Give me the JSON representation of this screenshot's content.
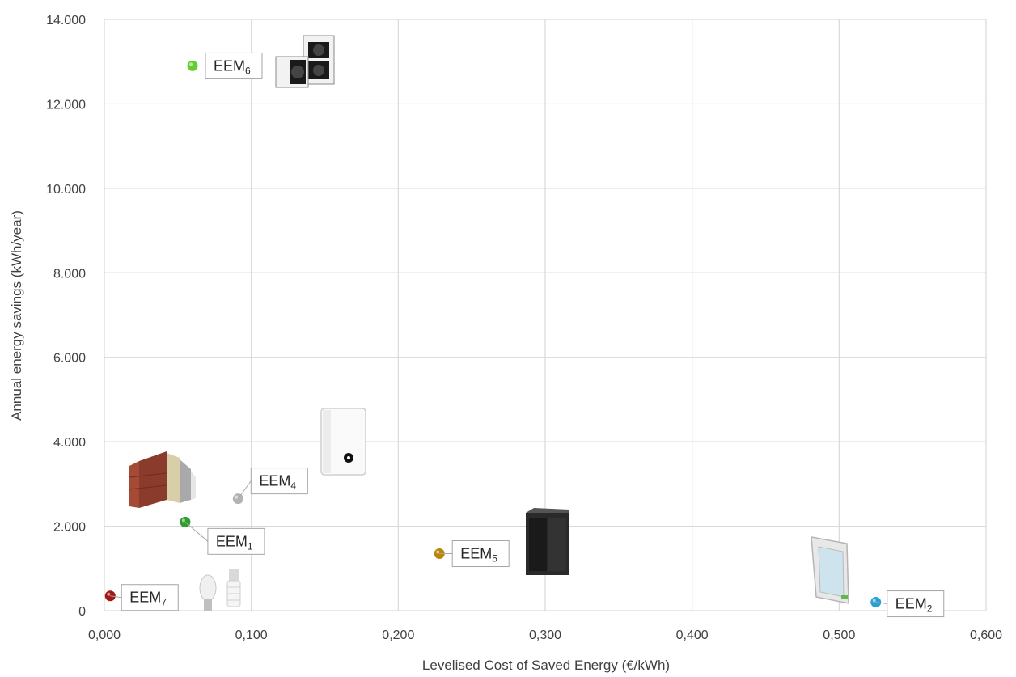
{
  "chart_data": {
    "type": "scatter",
    "xlabel": "Levelised Cost of Saved Energy (€/kWh)",
    "ylabel": "Annual energy savings (kWh/year)",
    "xlim": [
      0,
      0.6
    ],
    "ylim": [
      0,
      14000
    ],
    "x_ticks": [
      "0,000",
      "0,100",
      "0,200",
      "0,300",
      "0,400",
      "0,500",
      "0,600"
    ],
    "y_ticks": [
      "0",
      "2.000",
      "4.000",
      "6.000",
      "8.000",
      "10.000",
      "12.000",
      "14.000"
    ],
    "grid": true,
    "points": [
      {
        "label": "EEM",
        "sub": "1",
        "x": 0.055,
        "y": 2100,
        "color": "#2e9e2e",
        "icon": "wall-insulation-icon"
      },
      {
        "label": "EEM",
        "sub": "2",
        "x": 0.525,
        "y": 200,
        "color": "#2a9fd6",
        "icon": "window-icon"
      },
      {
        "label": "EEM",
        "sub": "4",
        "x": 0.091,
        "y": 2650,
        "color": "#b3b3b3",
        "icon": "boiler-icon"
      },
      {
        "label": "EEM",
        "sub": "5",
        "x": 0.228,
        "y": 1350,
        "color": "#b8860b",
        "icon": "biomass-stove-icon"
      },
      {
        "label": "EEM",
        "sub": "6",
        "x": 0.06,
        "y": 12900,
        "color": "#66cc33",
        "icon": "heat-pump-icon"
      },
      {
        "label": "EEM",
        "sub": "7",
        "x": 0.004,
        "y": 350,
        "color": "#a01818",
        "icon": "light-bulb-icon"
      }
    ]
  }
}
